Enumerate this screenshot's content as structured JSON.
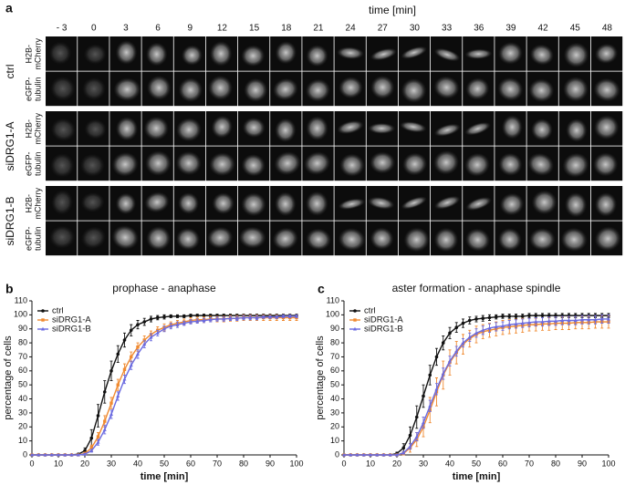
{
  "panel_a": {
    "label": "a",
    "axis_label": "time [min]",
    "times": [
      "- 3",
      "0",
      "3",
      "6",
      "9",
      "12",
      "15",
      "18",
      "21",
      "24",
      "27",
      "30",
      "33",
      "36",
      "39",
      "42",
      "45",
      "48"
    ],
    "rows": [
      {
        "label": "ctrl",
        "channels": [
          [
            "H2B-",
            "mCherry"
          ],
          [
            "eGFP-",
            "tubulin"
          ]
        ]
      },
      {
        "label": "siDRG1-A",
        "channels": [
          [
            "H2B-",
            "mCherry"
          ],
          [
            "eGFP-",
            "tubulin"
          ]
        ]
      },
      {
        "label": "siDRG1-B",
        "channels": [
          [
            "H2B-",
            "mCherry"
          ],
          [
            "eGFP-",
            "tubulin"
          ]
        ]
      }
    ]
  },
  "chart_data": [
    {
      "type": "line",
      "panel_label": "b",
      "title": "prophase - anaphase",
      "x_label": "time [min]",
      "y_label": "percentage of cells",
      "xlim": [
        0,
        100
      ],
      "xticks": [
        0,
        10,
        20,
        30,
        40,
        50,
        60,
        70,
        80,
        90,
        100
      ],
      "ylim": [
        0,
        110
      ],
      "yticks": [
        0,
        10,
        20,
        30,
        40,
        50,
        60,
        70,
        80,
        90,
        100,
        110
      ],
      "legend": "upper left",
      "x": [
        0,
        2.5,
        5,
        7.5,
        10,
        12.5,
        15,
        17.5,
        20,
        22.5,
        25,
        27.5,
        30,
        32.5,
        35,
        37.5,
        40,
        42.5,
        45,
        47.5,
        50,
        52.5,
        55,
        57.5,
        60,
        62.5,
        65,
        67.5,
        70,
        72.5,
        75,
        77.5,
        80,
        82.5,
        85,
        87.5,
        90,
        92.5,
        95,
        97.5,
        100
      ],
      "series": [
        {
          "name": "ctrl",
          "color": "#111111",
          "values": [
            0,
            0,
            0,
            0,
            0,
            0,
            0,
            0.5,
            3,
            12,
            28,
            45,
            60,
            72,
            82,
            89,
            93,
            95,
            97,
            98,
            98.5,
            99,
            99,
            99,
            99.5,
            99.5,
            99.5,
            99.5,
            99.5,
            99.5,
            99.5,
            99.5,
            99.5,
            99.5,
            99.5,
            99.5,
            99.5,
            99.5,
            99.5,
            99.5,
            99.5
          ],
          "errors": [
            0,
            0,
            0,
            0,
            0,
            0,
            0,
            0.5,
            2,
            6,
            8,
            8,
            7,
            6,
            5,
            4,
            3,
            2.5,
            2,
            1.5,
            1.5,
            1,
            1,
            1,
            1,
            1,
            1,
            1,
            1,
            1,
            1,
            1,
            1,
            1,
            1,
            1,
            1,
            1,
            1,
            1,
            1
          ]
        },
        {
          "name": "siDRG1-A",
          "color": "#f08a30",
          "values": [
            0,
            0,
            0,
            0,
            0,
            0,
            0,
            0,
            1,
            5,
            13,
            24,
            37,
            50,
            61,
            70,
            77,
            82,
            86,
            89,
            91,
            93,
            94,
            95,
            96,
            96.5,
            96.5,
            97,
            97,
            97,
            97.5,
            97.5,
            98,
            98,
            98,
            98,
            98,
            98,
            98,
            98,
            98
          ],
          "errors": [
            0,
            0,
            0,
            0,
            0,
            0,
            0,
            0,
            1,
            2,
            3,
            4,
            4,
            4,
            4,
            3.5,
            3,
            3,
            2.5,
            2.5,
            2.5,
            2,
            2,
            2,
            2,
            2,
            2,
            2,
            2,
            2,
            2,
            2,
            2,
            2,
            2,
            2,
            2,
            2,
            2,
            2,
            2
          ]
        },
        {
          "name": "siDRG1-B",
          "color": "#6a6ae0",
          "values": [
            0,
            0,
            0,
            0,
            0,
            0,
            0,
            0,
            0.5,
            3,
            9,
            18,
            29,
            42,
            54,
            64,
            72,
            79,
            84,
            87,
            90,
            92,
            93,
            94,
            95,
            95.5,
            96,
            96.5,
            97,
            97,
            97.5,
            97.5,
            98,
            98,
            98,
            98.5,
            98.5,
            98.5,
            99,
            99,
            99
          ],
          "errors": [
            0,
            0,
            0,
            0,
            0,
            0,
            0,
            0,
            0.5,
            1,
            2,
            3,
            3,
            3,
            3,
            3,
            3,
            2.5,
            2.5,
            2,
            2,
            2,
            2,
            1.5,
            1.5,
            1.5,
            1.5,
            1.5,
            1.5,
            1.5,
            1.5,
            1.5,
            1.5,
            1.5,
            1.5,
            1,
            1,
            1,
            1,
            1,
            1
          ]
        }
      ]
    },
    {
      "type": "line",
      "panel_label": "c",
      "title": "aster formation - anaphase spindle",
      "x_label": "time [min]",
      "y_label": "percentage of cells",
      "xlim": [
        0,
        100
      ],
      "xticks": [
        0,
        10,
        20,
        30,
        40,
        50,
        60,
        70,
        80,
        90,
        100
      ],
      "ylim": [
        0,
        110
      ],
      "yticks": [
        0,
        10,
        20,
        30,
        40,
        50,
        60,
        70,
        80,
        90,
        100,
        110
      ],
      "legend": "upper left",
      "x": [
        0,
        2.5,
        5,
        7.5,
        10,
        12.5,
        15,
        17.5,
        20,
        22.5,
        25,
        27.5,
        30,
        32.5,
        35,
        37.5,
        40,
        42.5,
        45,
        47.5,
        50,
        52.5,
        55,
        57.5,
        60,
        62.5,
        65,
        67.5,
        70,
        72.5,
        75,
        77.5,
        80,
        82.5,
        85,
        87.5,
        90,
        92.5,
        95,
        97.5,
        100
      ],
      "series": [
        {
          "name": "ctrl",
          "color": "#111111",
          "values": [
            0,
            0,
            0,
            0,
            0,
            0,
            0,
            0,
            1,
            5,
            14,
            27,
            42,
            57,
            70,
            80,
            87,
            91,
            94,
            96,
            97,
            97.5,
            98,
            98.5,
            99,
            99,
            99,
            99,
            99.5,
            99.5,
            99.5,
            99.5,
            99.5,
            99.5,
            99.5,
            99.5,
            99.5,
            99.5,
            99.5,
            99.5,
            99.5
          ],
          "errors": [
            0,
            0,
            0,
            0,
            0,
            0,
            0,
            0,
            1,
            3,
            6,
            8,
            8,
            7,
            6,
            5,
            4,
            3.5,
            3,
            2.5,
            2,
            2,
            2,
            1.5,
            1.5,
            1.5,
            1.5,
            1.5,
            1.5,
            1.5,
            1.5,
            1.5,
            1.5,
            1.5,
            1.5,
            1.5,
            1.5,
            1.5,
            1.5,
            1.5,
            1.5
          ]
        },
        {
          "name": "siDRG1-A",
          "color": "#f08a30",
          "values": [
            0,
            0,
            0,
            0,
            0,
            0,
            0,
            0,
            0,
            1,
            5,
            11,
            20,
            32,
            45,
            57,
            66,
            73,
            79,
            83,
            86,
            88,
            89,
            90,
            91,
            91.5,
            92,
            92.5,
            93,
            93,
            93.5,
            93.5,
            94,
            94,
            94,
            94.5,
            94.5,
            94.5,
            95,
            95,
            95
          ],
          "errors": [
            0,
            0,
            0,
            0,
            0,
            0,
            0,
            0,
            0,
            1,
            3,
            5,
            7,
            9,
            10,
            10,
            9,
            8,
            7,
            6,
            6,
            5,
            5,
            5,
            5,
            5,
            5,
            5,
            4.5,
            4.5,
            4.5,
            4.5,
            4.5,
            4.5,
            4.5,
            4.5,
            4.5,
            4.5,
            4.5,
            4.5,
            4.5
          ]
        },
        {
          "name": "siDRG1-B",
          "color": "#6a6ae0",
          "values": [
            0,
            0,
            0,
            0,
            0,
            0,
            0,
            0,
            0,
            1.5,
            6,
            13,
            23,
            35,
            47,
            58,
            67,
            74,
            80,
            84,
            87,
            89,
            90.5,
            91.5,
            92,
            93,
            93.5,
            94,
            94.5,
            95,
            95,
            95.5,
            95.5,
            96,
            96,
            96,
            96.5,
            96.5,
            96.5,
            97,
            97
          ],
          "errors": [
            0,
            0,
            0,
            0,
            0,
            0,
            0,
            0,
            0,
            1,
            2,
            3,
            4,
            4,
            4,
            4,
            3.5,
            3.5,
            3,
            3,
            3,
            3,
            3,
            3,
            3,
            3,
            3,
            3,
            3,
            3,
            3,
            3,
            3,
            3,
            3,
            3,
            3,
            3,
            3,
            3,
            3
          ]
        }
      ]
    }
  ]
}
